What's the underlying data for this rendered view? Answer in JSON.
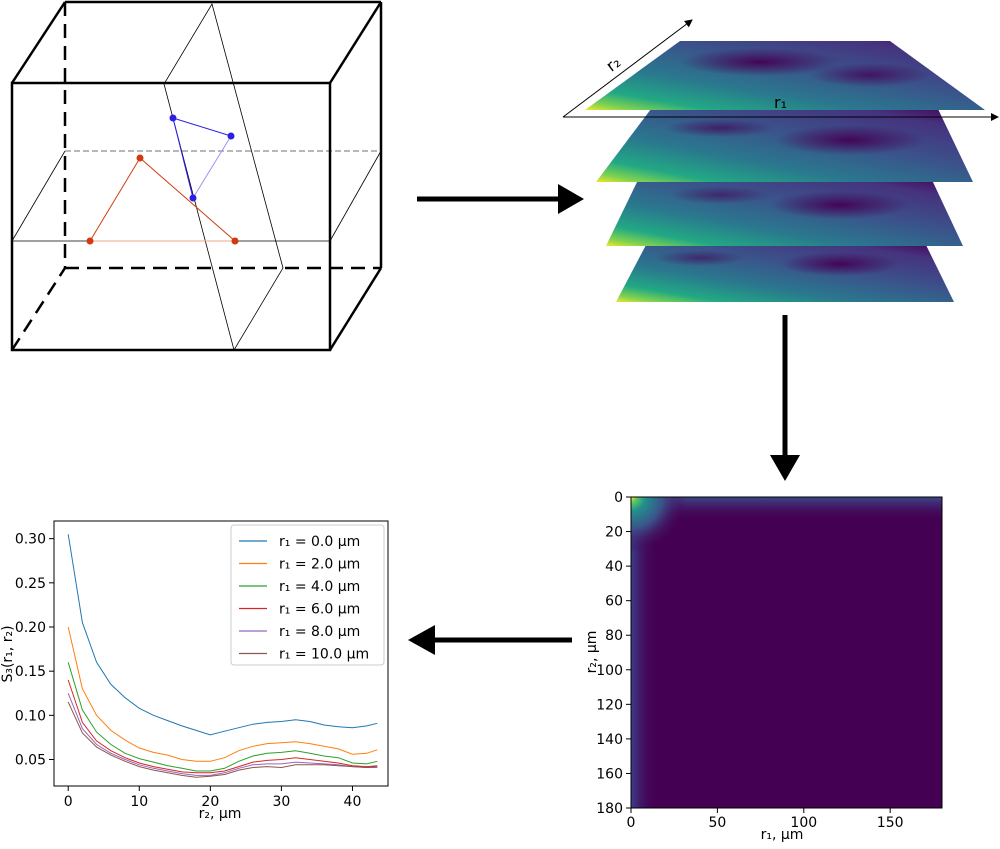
{
  "cube": {
    "blue_triangle_color": "#2b1fe6",
    "red_triangle_color": "#d13a0f"
  },
  "slices": {
    "axis_labels": {
      "r1": "r₁",
      "r2": "r₂"
    },
    "colormap": [
      "#440154",
      "#3b528b",
      "#21918c",
      "#5ec962",
      "#fde725"
    ]
  },
  "heatmap": {
    "xlabel": "r₁, μm",
    "ylabel": "r₂, μm",
    "x_ticks": [
      "0",
      "50",
      "100",
      "150"
    ],
    "y_ticks": [
      "0",
      "20",
      "40",
      "60",
      "80",
      "100",
      "120",
      "140",
      "160",
      "180"
    ]
  },
  "chart_data": {
    "type": "line",
    "title": "",
    "xlabel": "r₂, μm",
    "ylabel": "S₃(r₁, r₂)",
    "xlim": [
      -2,
      45
    ],
    "ylim": [
      0.02,
      0.32
    ],
    "x_ticks": [
      "0",
      "10",
      "20",
      "30",
      "40"
    ],
    "y_ticks": [
      "0.05",
      "0.10",
      "0.15",
      "0.20",
      "0.25",
      "0.30"
    ],
    "legend_position": "top-right",
    "x": [
      0,
      2,
      4,
      6,
      8,
      10,
      12,
      14,
      16,
      18,
      20,
      22,
      24,
      26,
      28,
      30,
      32,
      34,
      36,
      38,
      40,
      42,
      43.5
    ],
    "series": [
      {
        "name": "r₁ = 0.0 μm",
        "color": "#1f77b4",
        "values": [
          0.305,
          0.205,
          0.16,
          0.135,
          0.12,
          0.108,
          0.1,
          0.094,
          0.088,
          0.083,
          0.078,
          0.082,
          0.086,
          0.09,
          0.092,
          0.093,
          0.095,
          0.093,
          0.089,
          0.087,
          0.086,
          0.088,
          0.091
        ]
      },
      {
        "name": "r₁ = 2.0 μm",
        "color": "#ff7f0e",
        "values": [
          0.2,
          0.13,
          0.1,
          0.083,
          0.072,
          0.063,
          0.058,
          0.055,
          0.05,
          0.048,
          0.048,
          0.052,
          0.06,
          0.065,
          0.068,
          0.069,
          0.07,
          0.068,
          0.065,
          0.062,
          0.056,
          0.057,
          0.061
        ]
      },
      {
        "name": "r₁ = 4.0 μm",
        "color": "#2ca02c",
        "values": [
          0.16,
          0.106,
          0.081,
          0.067,
          0.057,
          0.051,
          0.047,
          0.043,
          0.04,
          0.037,
          0.037,
          0.04,
          0.048,
          0.054,
          0.057,
          0.058,
          0.06,
          0.057,
          0.054,
          0.052,
          0.046,
          0.045,
          0.048
        ]
      },
      {
        "name": "r₁ = 6.0 μm",
        "color": "#d62728",
        "values": [
          0.14,
          0.092,
          0.071,
          0.06,
          0.052,
          0.046,
          0.042,
          0.039,
          0.036,
          0.035,
          0.035,
          0.037,
          0.042,
          0.047,
          0.049,
          0.05,
          0.052,
          0.05,
          0.048,
          0.046,
          0.043,
          0.042,
          0.043
        ]
      },
      {
        "name": "r₁ = 8.0 μm",
        "color": "#9467bd",
        "values": [
          0.125,
          0.085,
          0.067,
          0.057,
          0.05,
          0.044,
          0.04,
          0.037,
          0.034,
          0.032,
          0.032,
          0.035,
          0.04,
          0.044,
          0.045,
          0.045,
          0.047,
          0.046,
          0.045,
          0.044,
          0.042,
          0.041,
          0.041
        ]
      },
      {
        "name": "r₁ = 10.0 μm",
        "color": "#8c564b",
        "values": [
          0.115,
          0.08,
          0.064,
          0.055,
          0.048,
          0.042,
          0.038,
          0.035,
          0.032,
          0.03,
          0.031,
          0.033,
          0.038,
          0.041,
          0.042,
          0.041,
          0.044,
          0.044,
          0.044,
          0.043,
          0.042,
          0.041,
          0.042
        ]
      }
    ]
  }
}
